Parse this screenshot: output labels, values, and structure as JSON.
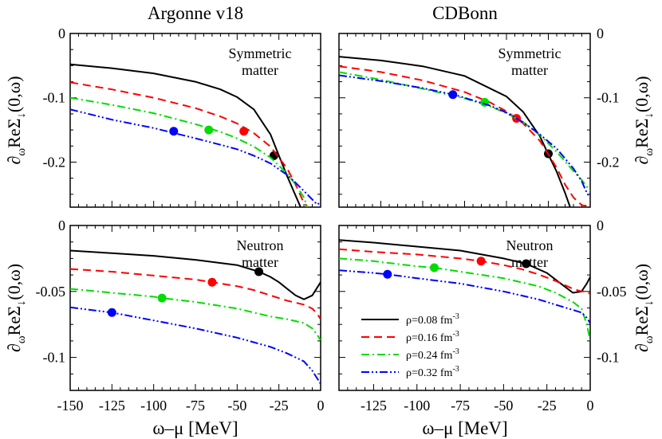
{
  "chart_data": {
    "type": "line",
    "xlabel": "ω–μ [MeV]",
    "ylabel": "∂ωReΣ↓(0,ω)",
    "legend": {
      "placement": "bottom-right of CDBonn neutron matter panel",
      "entries": [
        "ρ=0.08 fm-3",
        "ρ=0.16 fm-3",
        "ρ=0.24 fm-3",
        "ρ=0.32 fm-3"
      ]
    },
    "series_styles": [
      {
        "name": "ρ=0.08 fm-3",
        "color": "#000000",
        "dash": "solid"
      },
      {
        "name": "ρ=0.16 fm-3",
        "color": "#ff0000",
        "dash": "dashed"
      },
      {
        "name": "ρ=0.24 fm-3",
        "color": "#00dd00",
        "dash": "dash-dot"
      },
      {
        "name": "ρ=0.32 fm-3",
        "color": "#0000ff",
        "dash": "dash-dot-dot"
      }
    ],
    "panels": [
      {
        "id": "av18-sym",
        "column_title": "Argonne v18",
        "annotation": [
          "Symmetric",
          "matter"
        ],
        "xlim": [
          -150,
          0
        ],
        "ylim": [
          -0.27,
          0
        ],
        "yticks": [
          0,
          -0.1,
          -0.2
        ],
        "ytick_labels": [
          "0",
          "-0.1",
          "-0.2"
        ],
        "xticks": [],
        "xtick_labels": [],
        "y_label_side": "left",
        "series": [
          {
            "name": "ρ=0.08 fm-3",
            "x": [
              -150,
              -125,
              -100,
              -75,
              -60,
              -50,
              -40,
              -30,
              -25,
              -20,
              -15,
              -12
            ],
            "y": [
              -0.048,
              -0.054,
              -0.062,
              -0.075,
              -0.087,
              -0.099,
              -0.118,
              -0.157,
              -0.19,
              -0.222,
              -0.252,
              -0.27
            ],
            "marker": {
              "x": -28,
              "y": -0.19
            }
          },
          {
            "name": "ρ=0.16 fm-3",
            "x": [
              -150,
              -125,
              -100,
              -75,
              -60,
              -50,
              -40,
              -30,
              -20,
              -15,
              -11,
              -8
            ],
            "y": [
              -0.076,
              -0.087,
              -0.1,
              -0.116,
              -0.129,
              -0.14,
              -0.155,
              -0.176,
              -0.21,
              -0.235,
              -0.258,
              -0.27
            ],
            "marker": {
              "x": -46,
              "y": -0.152
            }
          },
          {
            "name": "ρ=0.24 fm-3",
            "x": [
              -150,
              -125,
              -100,
              -75,
              -60,
              -50,
              -40,
              -30,
              -20,
              -15,
              -10,
              -8
            ],
            "y": [
              -0.1,
              -0.111,
              -0.124,
              -0.141,
              -0.153,
              -0.163,
              -0.176,
              -0.193,
              -0.218,
              -0.235,
              -0.255,
              -0.27
            ],
            "marker": {
              "x": -67,
              "y": -0.15
            }
          },
          {
            "name": "ρ=0.32 fm-3",
            "x": [
              -150,
              -125,
              -100,
              -75,
              -60,
              -50,
              -40,
              -30,
              -20,
              -15,
              -10,
              -5,
              -2,
              0
            ],
            "y": [
              -0.118,
              -0.134,
              -0.147,
              -0.163,
              -0.173,
              -0.18,
              -0.19,
              -0.202,
              -0.22,
              -0.232,
              -0.245,
              -0.258,
              -0.266,
              -0.262
            ],
            "marker": {
              "x": -88,
              "y": -0.152
            }
          }
        ]
      },
      {
        "id": "cdbonn-sym",
        "column_title": "CDBonn",
        "annotation": [
          "Symmetric",
          "matter"
        ],
        "xlim": [
          -150,
          0
        ],
        "ylim": [
          -0.27,
          0
        ],
        "yticks": [
          0,
          -0.1,
          -0.2
        ],
        "ytick_labels": [
          "0",
          "-0.1",
          "-0.2"
        ],
        "xticks": [],
        "xtick_labels": [],
        "y_label_side": "right",
        "series": [
          {
            "name": "ρ=0.08 fm-3",
            "x": [
              -150,
              -125,
              -100,
              -75,
              -50,
              -40,
              -30,
              -25,
              -20,
              -15,
              -12
            ],
            "y": [
              -0.036,
              -0.042,
              -0.051,
              -0.066,
              -0.098,
              -0.122,
              -0.16,
              -0.188,
              -0.215,
              -0.248,
              -0.27
            ],
            "marker": {
              "x": -25,
              "y": -0.187
            }
          },
          {
            "name": "ρ=0.16 fm-3",
            "x": [
              -150,
              -125,
              -100,
              -75,
              -60,
              -50,
              -40,
              -30,
              -20,
              -15,
              -10,
              -5,
              -2,
              0
            ],
            "y": [
              -0.051,
              -0.06,
              -0.073,
              -0.091,
              -0.107,
              -0.121,
              -0.14,
              -0.167,
              -0.209,
              -0.235,
              -0.255,
              -0.267,
              -0.268,
              -0.262
            ],
            "marker": {
              "x": -44,
              "y": -0.132
            }
          },
          {
            "name": "ρ=0.24 fm-3",
            "x": [
              -150,
              -125,
              -100,
              -75,
              -60,
              -50,
              -40,
              -30,
              -20,
              -10,
              -5,
              0
            ],
            "y": [
              -0.06,
              -0.072,
              -0.086,
              -0.101,
              -0.113,
              -0.124,
              -0.138,
              -0.158,
              -0.184,
              -0.214,
              -0.228,
              -0.245
            ],
            "marker": {
              "x": -63,
              "y": -0.107
            }
          },
          {
            "name": "ρ=0.32 fm-3",
            "x": [
              -150,
              -125,
              -100,
              -80,
              -60,
              -50,
              -40,
              -30,
              -20,
              -10,
              -5,
              -2,
              0
            ],
            "y": [
              -0.065,
              -0.074,
              -0.085,
              -0.096,
              -0.112,
              -0.123,
              -0.138,
              -0.157,
              -0.179,
              -0.21,
              -0.23,
              -0.248,
              -0.255
            ],
            "marker": {
              "x": -82,
              "y": -0.095
            }
          }
        ]
      },
      {
        "id": "av18-neu",
        "column_title": "",
        "annotation": [
          "Neutron",
          "matter"
        ],
        "xlim": [
          -150,
          0
        ],
        "ylim": [
          -0.125,
          0
        ],
        "yticks": [
          0,
          -0.05,
          -0.1
        ],
        "ytick_labels": [
          "0",
          "-0.05",
          "-0.1"
        ],
        "xticks": [
          -150,
          -125,
          -100,
          -75,
          -50,
          -25,
          0
        ],
        "xtick_labels": [
          "-150",
          "-125",
          "-100",
          "-75",
          "-50",
          "-25",
          "0"
        ],
        "y_label_side": "left",
        "series": [
          {
            "name": "ρ=0.08 fm-3",
            "x": [
              -150,
              -125,
              -100,
              -75,
              -50,
              -37,
              -30,
              -25,
              -20,
              -15,
              -10,
              -5,
              -2,
              0
            ],
            "y": [
              -0.019,
              -0.021,
              -0.023,
              -0.026,
              -0.03,
              -0.035,
              -0.039,
              -0.043,
              -0.048,
              -0.053,
              -0.056,
              -0.053,
              -0.047,
              -0.043
            ],
            "marker": {
              "x": -37,
              "y": -0.035
            }
          },
          {
            "name": "ρ=0.16 fm-3",
            "x": [
              -150,
              -125,
              -100,
              -75,
              -65,
              -50,
              -40,
              -30,
              -20,
              -10,
              -5,
              -2,
              0
            ],
            "y": [
              -0.033,
              -0.035,
              -0.038,
              -0.041,
              -0.043,
              -0.046,
              -0.049,
              -0.053,
              -0.057,
              -0.06,
              -0.063,
              -0.067,
              -0.071
            ],
            "marker": {
              "x": -65,
              "y": -0.043
            }
          },
          {
            "name": "ρ=0.24 fm-3",
            "x": [
              -150,
              -125,
              -100,
              -95,
              -75,
              -50,
              -30,
              -20,
              -10,
              -5,
              -2,
              0
            ],
            "y": [
              -0.048,
              -0.051,
              -0.054,
              -0.055,
              -0.058,
              -0.063,
              -0.069,
              -0.071,
              -0.074,
              -0.078,
              -0.083,
              -0.087
            ],
            "marker": {
              "x": -95,
              "y": -0.055
            }
          },
          {
            "name": "ρ=0.32 fm-3",
            "x": [
              -150,
              -125,
              -100,
              -75,
              -50,
              -30,
              -20,
              -10,
              -5,
              -2,
              0
            ],
            "y": [
              -0.062,
              -0.066,
              -0.072,
              -0.078,
              -0.085,
              -0.092,
              -0.097,
              -0.103,
              -0.11,
              -0.116,
              -0.12
            ],
            "marker": {
              "x": -125,
              "y": -0.066
            }
          }
        ]
      },
      {
        "id": "cdbonn-neu",
        "column_title": "",
        "annotation": [
          "Neutron",
          "matter"
        ],
        "xlim": [
          -145,
          0
        ],
        "ylim": [
          -0.125,
          0
        ],
        "yticks": [
          0,
          -0.05,
          -0.1
        ],
        "ytick_labels": [
          "0",
          "-0.05",
          "-0.1"
        ],
        "xticks": [
          -125,
          -100,
          -75,
          -50,
          -25,
          0
        ],
        "xtick_labels": [
          "-125",
          "-100",
          "-75",
          "-50",
          "-25",
          "0"
        ],
        "y_label_side": "right",
        "series": [
          {
            "name": "ρ=0.08 fm-3",
            "x": [
              -145,
              -125,
              -100,
              -75,
              -50,
              -37,
              -25,
              -15,
              -10,
              -5,
              -2,
              0
            ],
            "y": [
              -0.011,
              -0.013,
              -0.016,
              -0.019,
              -0.025,
              -0.029,
              -0.036,
              -0.046,
              -0.051,
              -0.05,
              -0.044,
              -0.039
            ],
            "marker": {
              "x": -37,
              "y": -0.029
            }
          },
          {
            "name": "ρ=0.16 fm-3",
            "x": [
              -145,
              -125,
              -100,
              -75,
              -63,
              -50,
              -40,
              -30,
              -20,
              -10,
              -5,
              -2,
              0
            ],
            "y": [
              -0.018,
              -0.02,
              -0.022,
              -0.025,
              -0.027,
              -0.03,
              -0.033,
              -0.037,
              -0.042,
              -0.048,
              -0.05,
              -0.05,
              -0.052
            ],
            "marker": {
              "x": -63,
              "y": -0.027
            }
          },
          {
            "name": "ρ=0.24 fm-3",
            "x": [
              -145,
              -125,
              -100,
              -90,
              -75,
              -50,
              -30,
              -20,
              -10,
              -5,
              -2,
              0
            ],
            "y": [
              -0.025,
              -0.027,
              -0.031,
              -0.032,
              -0.035,
              -0.04,
              -0.046,
              -0.051,
              -0.058,
              -0.063,
              -0.075,
              -0.087
            ],
            "marker": {
              "x": -90,
              "y": -0.032
            }
          },
          {
            "name": "ρ=0.32 fm-3",
            "x": [
              -145,
              -125,
              -117,
              -100,
              -75,
              -50,
              -30,
              -20,
              -10,
              -5,
              -2,
              0
            ],
            "y": [
              -0.034,
              -0.036,
              -0.037,
              -0.04,
              -0.044,
              -0.05,
              -0.056,
              -0.06,
              -0.064,
              -0.066,
              -0.07,
              -0.074
            ],
            "marker": {
              "x": -117,
              "y": -0.037
            }
          }
        ]
      }
    ]
  }
}
